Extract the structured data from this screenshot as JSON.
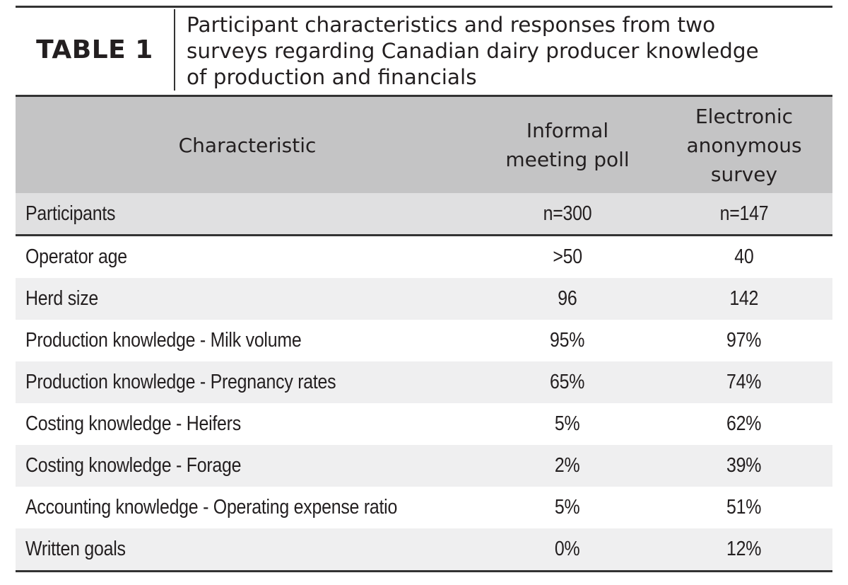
{
  "table_label": "TABLE 1",
  "caption_lines": [
    "Participant characteristics and responses from two",
    "surveys regarding Canadian dairy producer knowledge",
    "of production and financials"
  ],
  "columns": {
    "characteristic": "Characteristic",
    "informal_lines": [
      "Informal",
      "meeting poll"
    ],
    "electronic_lines": [
      "Electronic",
      "anonymous",
      "survey"
    ]
  },
  "rows": [
    {
      "label": "Participants",
      "informal": "n=300",
      "electronic": "n=147"
    },
    {
      "label": "Operator age",
      "informal": ">50",
      "electronic": "40"
    },
    {
      "label": "Herd size",
      "informal": "96",
      "electronic": "142"
    },
    {
      "label": "Production knowledge - Milk volume",
      "informal": "95%",
      "electronic": "97%"
    },
    {
      "label": "Production knowledge - Pregnancy rates",
      "informal": "65%",
      "electronic": "74%"
    },
    {
      "label": "Costing knowledge - Heifers",
      "informal": "5%",
      "electronic": "62%"
    },
    {
      "label": "Costing knowledge - Forage",
      "informal": "2%",
      "electronic": "39%"
    },
    {
      "label": "Accounting knowledge - Operating expense ratio",
      "informal": "5%",
      "electronic": "51%"
    },
    {
      "label": "Written goals",
      "informal": "0%",
      "electronic": "12%"
    }
  ]
}
